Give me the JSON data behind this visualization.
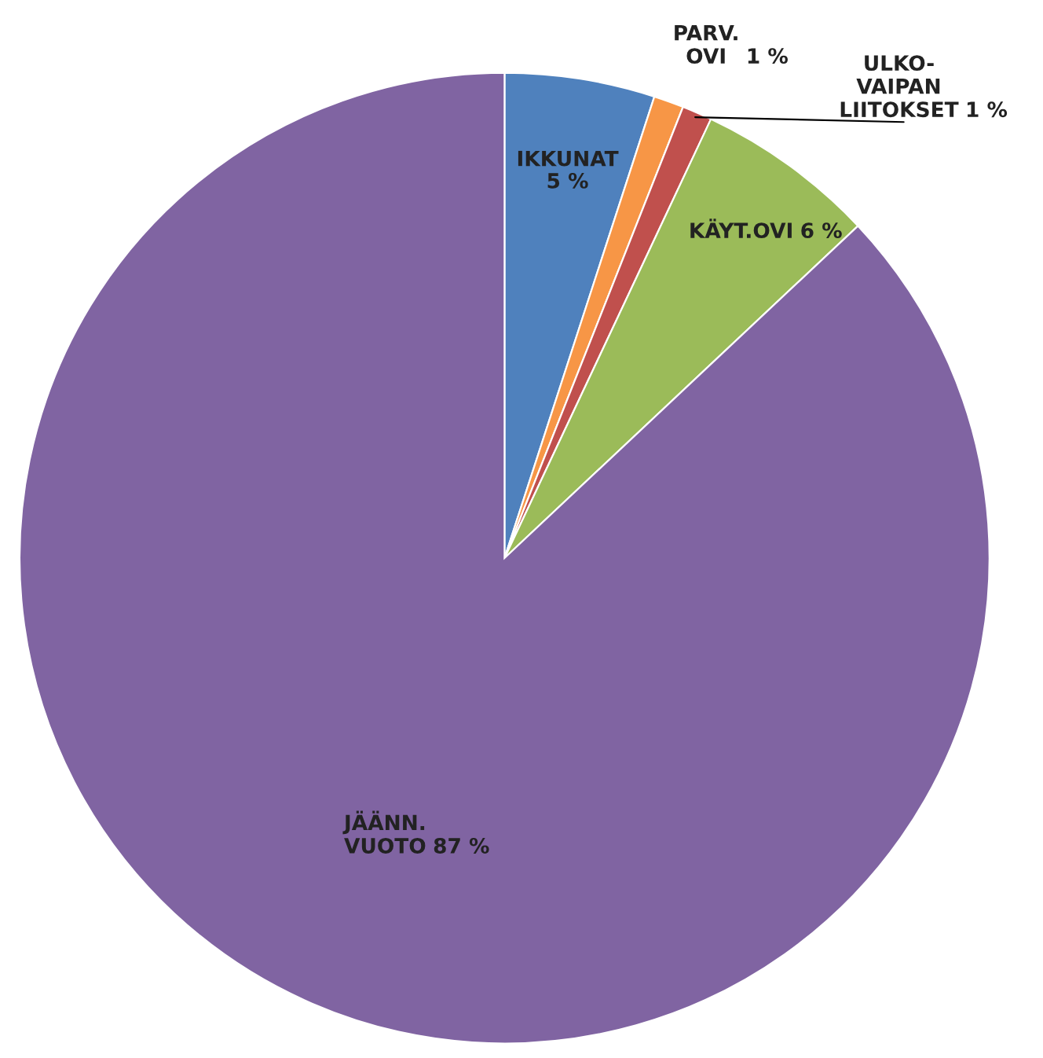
{
  "chart_data": {
    "type": "pie",
    "categories": [
      "IKKUNAT",
      "PARV.\nOVI",
      "ULKO-\nVAIPAN\nLIITOKSET",
      "KÄYT.OVI",
      "JÄÄNN.\nVUOTO"
    ],
    "values": [
      5,
      1,
      1,
      6,
      87
    ],
    "value_labels": [
      "5 %",
      "1 %",
      "1 %",
      "6 %",
      "87 %"
    ],
    "colors": [
      "#4f81bd",
      "#f79646",
      "#c0504d",
      "#9bbb59",
      "#8064a2"
    ]
  }
}
